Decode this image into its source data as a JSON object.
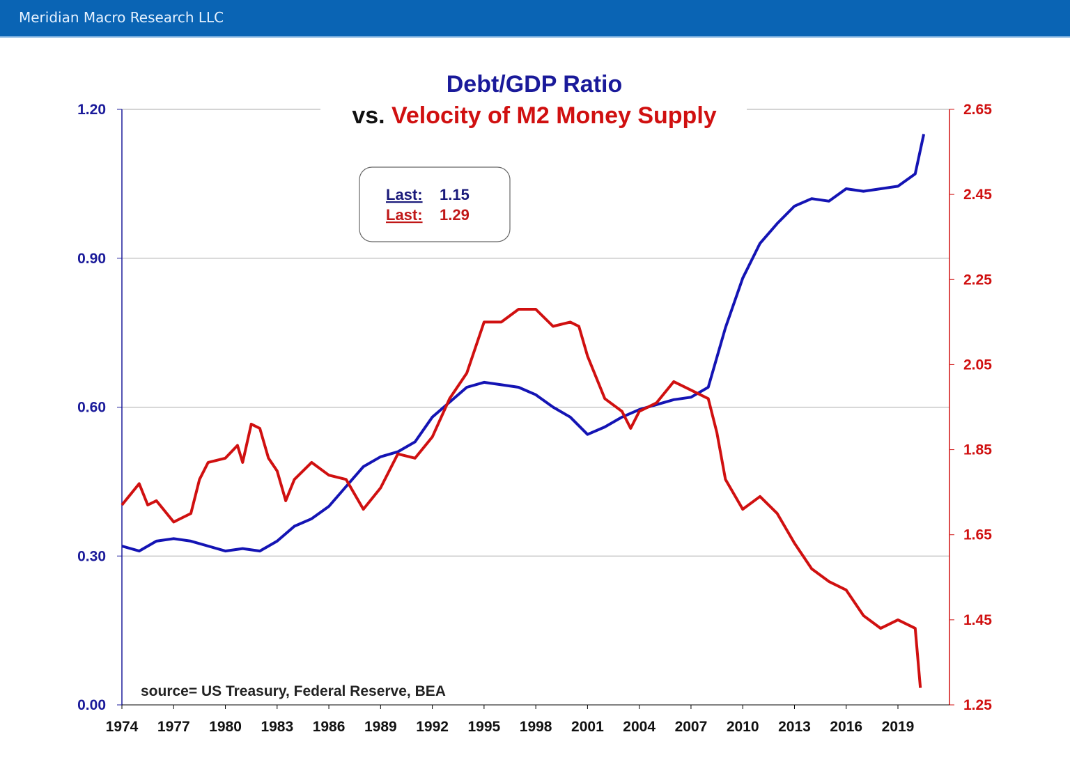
{
  "header": {
    "title": "Meridian Macro Research LLC"
  },
  "chart_data": {
    "type": "line",
    "title_line1": "Debt/GDP Ratio",
    "title_line2_prefix": "vs.",
    "title_line2_red": "Velocity of M2 Money Supply",
    "source": "source= US Treasury, Federal Reserve, BEA",
    "colors": {
      "debt": "#1414b4",
      "velocity": "#d01010",
      "title": "#1a1a9a"
    },
    "legend": {
      "label": "Last:",
      "debt_last": "1.15",
      "velocity_last": "1.29"
    },
    "x_ticks": [
      "1974",
      "1977",
      "1980",
      "1983",
      "1986",
      "1989",
      "1992",
      "1995",
      "1998",
      "2001",
      "2004",
      "2007",
      "2010",
      "2013",
      "2016",
      "2019"
    ],
    "xlim": [
      1974,
      2022
    ],
    "left_axis": {
      "ylim": [
        0,
        1.2
      ],
      "ticks": [
        "0.00",
        "0.30",
        "0.60",
        "0.90",
        "1.20"
      ]
    },
    "right_axis": {
      "ylim": [
        1.25,
        2.65
      ],
      "ticks": [
        "1.25",
        "1.45",
        "1.65",
        "1.85",
        "2.05",
        "2.25",
        "2.45",
        "2.65"
      ]
    },
    "grid": true,
    "series": [
      {
        "axis": "left",
        "x": [
          1974,
          1975,
          1976,
          1977,
          1978,
          1979,
          1980,
          1981,
          1982,
          1983,
          1984,
          1985,
          1986,
          1987,
          1988,
          1989,
          1990,
          1991,
          1992,
          1993,
          1994,
          1995,
          1996,
          1997,
          1998,
          1999,
          2000,
          2001,
          2002,
          2003,
          2004,
          2005,
          2006,
          2007,
          2008,
          2009,
          2010,
          2011,
          2012,
          2013,
          2014,
          2015,
          2016,
          2017,
          2018,
          2019,
          2020,
          2020.5
        ],
        "y": [
          0.32,
          0.31,
          0.33,
          0.335,
          0.33,
          0.32,
          0.31,
          0.315,
          0.31,
          0.33,
          0.36,
          0.375,
          0.4,
          0.44,
          0.48,
          0.5,
          0.51,
          0.53,
          0.58,
          0.61,
          0.64,
          0.65,
          0.645,
          0.64,
          0.625,
          0.6,
          0.58,
          0.545,
          0.56,
          0.58,
          0.595,
          0.605,
          0.615,
          0.62,
          0.64,
          0.76,
          0.86,
          0.93,
          0.97,
          1.005,
          1.02,
          1.015,
          1.04,
          1.035,
          1.04,
          1.045,
          1.07,
          1.15
        ]
      },
      {
        "axis": "right",
        "x": [
          1974,
          1975,
          1975.5,
          1976,
          1977,
          1978,
          1978.5,
          1979,
          1980,
          1980.7,
          1981,
          1981.5,
          1982,
          1982.5,
          1983,
          1983.5,
          1984,
          1985,
          1986,
          1987,
          1988,
          1989,
          1990,
          1991,
          1992,
          1993,
          1994,
          1995,
          1996,
          1997,
          1998,
          1999,
          2000,
          2000.5,
          2001,
          2002,
          2003,
          2003.5,
          2004,
          2005,
          2006,
          2007,
          2008,
          2008.5,
          2009,
          2010,
          2011,
          2012,
          2013,
          2014,
          2015,
          2016,
          2017,
          2018,
          2019,
          2020,
          2020.3
        ],
        "y": [
          1.72,
          1.77,
          1.72,
          1.73,
          1.68,
          1.7,
          1.78,
          1.82,
          1.83,
          1.86,
          1.82,
          1.91,
          1.9,
          1.83,
          1.8,
          1.73,
          1.78,
          1.82,
          1.79,
          1.78,
          1.71,
          1.76,
          1.84,
          1.83,
          1.88,
          1.97,
          2.03,
          2.15,
          2.15,
          2.18,
          2.18,
          2.14,
          2.15,
          2.14,
          2.07,
          1.97,
          1.94,
          1.9,
          1.94,
          1.96,
          2.01,
          1.99,
          1.97,
          1.89,
          1.78,
          1.71,
          1.74,
          1.7,
          1.63,
          1.57,
          1.54,
          1.52,
          1.46,
          1.43,
          1.45,
          1.43,
          1.29
        ]
      }
    ]
  }
}
